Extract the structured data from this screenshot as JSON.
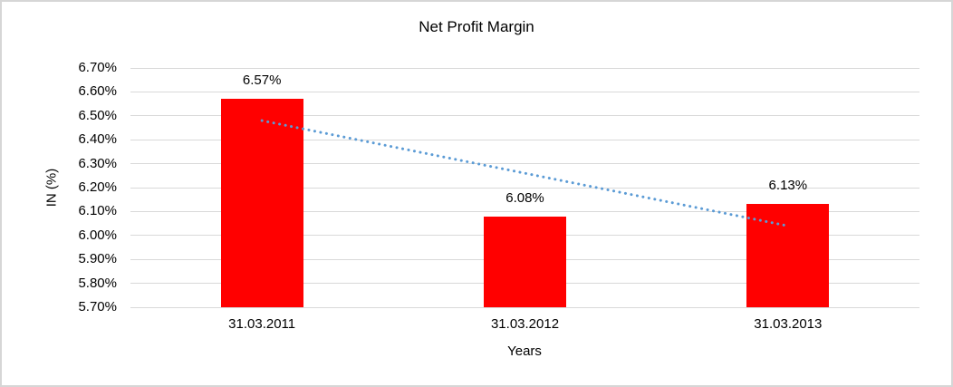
{
  "chart_data": {
    "type": "bar",
    "title": "Net Profit Margin",
    "xlabel": "Years",
    "ylabel": "IN (%)",
    "categories": [
      "31.03.2011",
      "31.03.2012",
      "31.03.2013"
    ],
    "values": [
      6.57,
      6.08,
      6.13
    ],
    "data_labels": [
      "6.57%",
      "6.08%",
      "6.13%"
    ],
    "ylim": [
      5.7,
      6.7
    ],
    "ytick_step": 0.1,
    "ytick_labels_top_to_bottom": [
      "6.70%",
      "6.60%",
      "6.50%",
      "6.40%",
      "6.30%",
      "6.20%",
      "6.10%",
      "6.00%",
      "5.90%",
      "5.80%",
      "5.70%"
    ],
    "grid": true,
    "legend": "none",
    "bar_color": "#ff0000",
    "gridline_color": "#d9d9d9",
    "trendline": {
      "type": "linear",
      "style": "dotted",
      "color": "#5b9bd5",
      "start_value": 6.48,
      "end_value": 6.04
    }
  }
}
